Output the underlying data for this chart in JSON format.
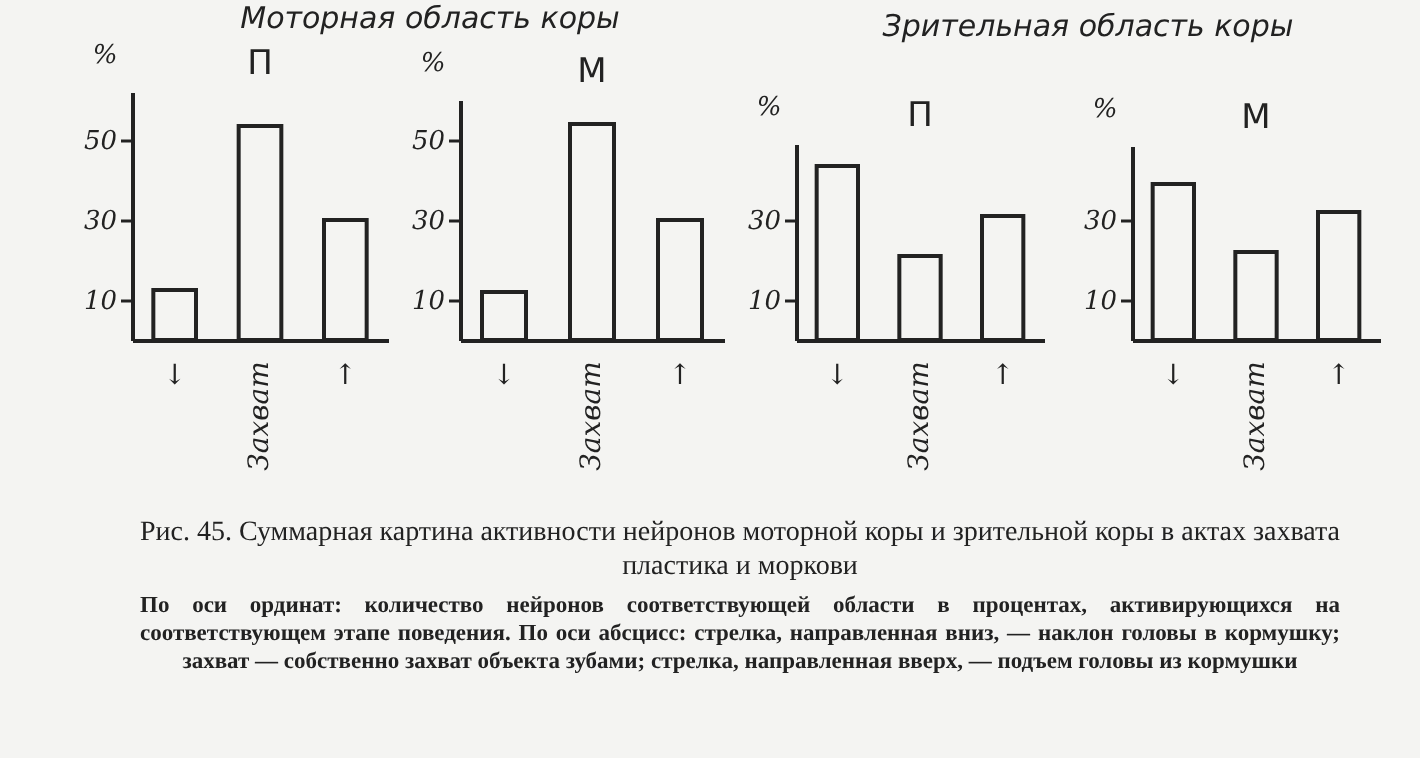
{
  "chart_data": [
    {
      "type": "bar",
      "title": "П",
      "annotations": [
        "Моторная область коры"
      ],
      "ylabel": "%",
      "categories": [
        "↓",
        "Захват",
        "↑"
      ],
      "values": [
        12.5,
        53.5,
        30
      ],
      "color": "#222222",
      "ylim": [
        0,
        62
      ],
      "yticks": [
        10,
        30,
        50
      ],
      "grid": false
    },
    {
      "type": "bar",
      "title": "М",
      "ylabel": "%",
      "categories": [
        "↓",
        "Захват",
        "↑"
      ],
      "values": [
        12,
        54,
        30
      ],
      "color": "#222222",
      "ylim": [
        0,
        60
      ],
      "yticks": [
        10,
        30,
        50
      ],
      "grid": false
    },
    {
      "type": "bar",
      "title": "П",
      "annotations": [
        "Зрительная область коры"
      ],
      "ylabel": "%",
      "categories": [
        "↓",
        "Захват",
        "↑"
      ],
      "values": [
        43.5,
        21,
        31
      ],
      "color": "#222222",
      "ylim": [
        0,
        49
      ],
      "yticks": [
        10,
        30
      ],
      "grid": false
    },
    {
      "type": "bar",
      "title": "М",
      "annotations": [
        "Рис. 45. Суммарная картина активности нейронов моторной коры и зрительной коры в актах захвата пластика и моркови",
        "По оси ординат: количество нейронов соответствующей области в процентах, активирующихся на соответствующем этапе поведения. По оси абсцисс: стрелка, направленная вниз, — наклон головы в кормушку; захват — собственно захват объекта зубами; стрелка, направленная вверх, — подъем головы из кормушки"
      ],
      "ylabel": "%",
      "categories": [
        "↓",
        "Захват",
        "↑"
      ],
      "values": [
        39,
        22,
        32
      ],
      "color": "#222222",
      "ylim": [
        0,
        48.5
      ],
      "yticks": [
        10,
        30
      ],
      "grid": false
    }
  ]
}
